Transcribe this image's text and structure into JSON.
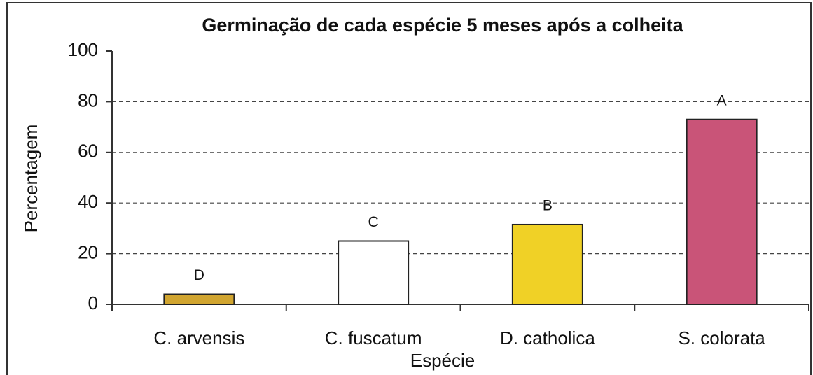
{
  "chart_data": {
    "type": "bar",
    "title": "Germinação de cada espécie 5 meses após a colheita",
    "x_label": "Espécie",
    "y_label": "Percentagem",
    "categories": [
      "C. arvensis",
      "C. fuscatum",
      "D. catholica",
      "S. colorata"
    ],
    "values": [
      4,
      25,
      31.5,
      73
    ],
    "colors": [
      "#d1a530",
      "#ffffff",
      "#f0d126",
      "#c95478"
    ],
    "annotations": [
      "D",
      "C",
      "B",
      "A"
    ],
    "ylim": [
      0,
      100
    ],
    "yticks": [
      0,
      20,
      40,
      60,
      80,
      100
    ],
    "grid": true
  }
}
